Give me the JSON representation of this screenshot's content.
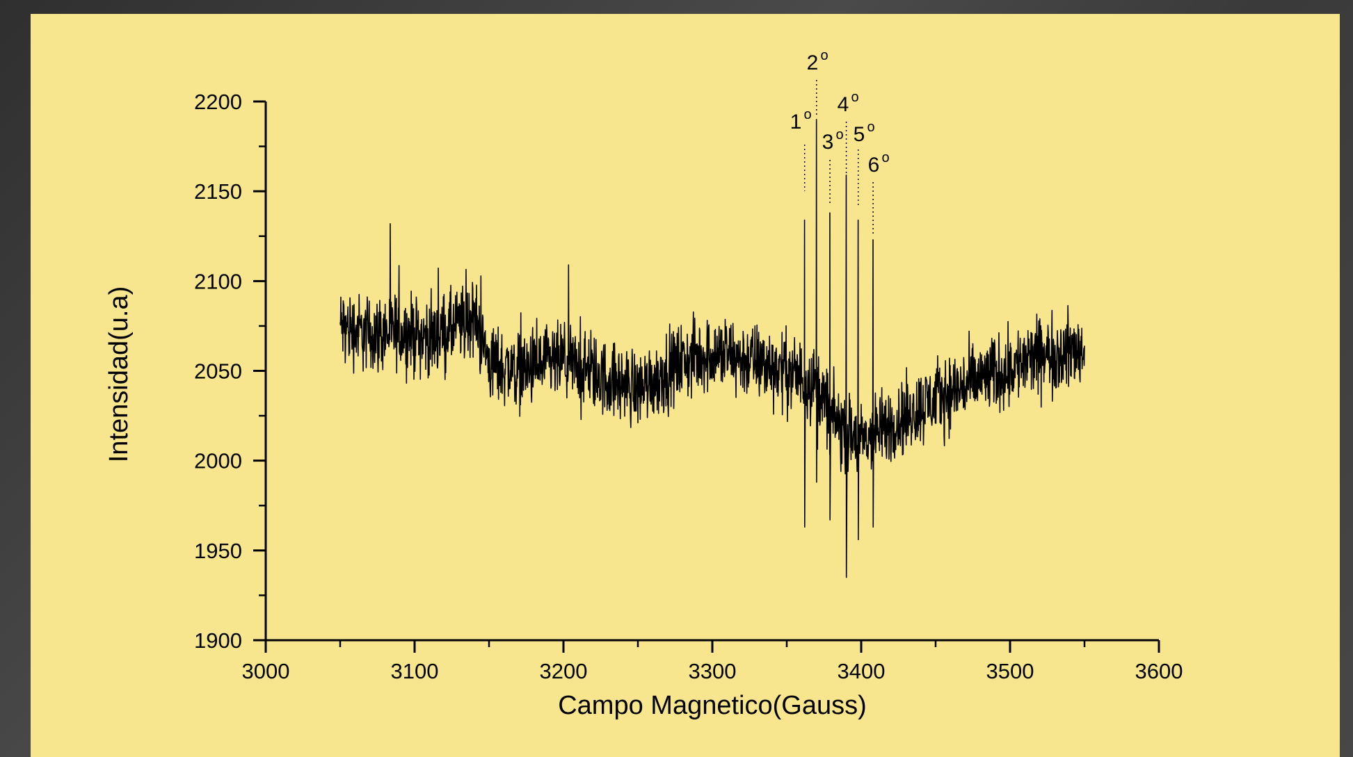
{
  "chart_data": {
    "type": "line",
    "title": "",
    "xlabel": "Campo Magnetico(Gauss)",
    "ylabel": "Intensidad(u.a)",
    "xlim": [
      3000,
      3600
    ],
    "ylim": [
      1900,
      2200
    ],
    "xticks": [
      3000,
      3100,
      3200,
      3300,
      3400,
      3500,
      3600
    ],
    "yticks": [
      1900,
      1950,
      2000,
      2050,
      2100,
      2150,
      2200
    ],
    "xtick_labels": [
      "3000",
      "3100",
      "3200",
      "3300",
      "3400",
      "3500",
      "3600"
    ],
    "ytick_labels": [
      "1900",
      "1950",
      "2000",
      "2050",
      "2100",
      "2150",
      "2200"
    ],
    "grid": false,
    "legend": "none",
    "line_color": "#000000",
    "background_color": "#f8e68e",
    "series": [
      {
        "baseline": {
          "x": [
            3050,
            3070,
            3090,
            3110,
            3130,
            3140,
            3150,
            3170,
            3200,
            3230,
            3250,
            3280,
            3300,
            3330,
            3350,
            3370,
            3380,
            3390,
            3400,
            3420,
            3450,
            3480,
            3500,
            3520,
            3550
          ],
          "y": [
            2075,
            2070,
            2072,
            2068,
            2075,
            2080,
            2055,
            2050,
            2055,
            2045,
            2040,
            2055,
            2060,
            2055,
            2050,
            2042,
            2025,
            2015,
            2010,
            2020,
            2035,
            2045,
            2052,
            2058,
            2062
          ]
        },
        "noise_amplitude": 22,
        "peaks": [
          {
            "x": 3362,
            "max": 2134,
            "min": 1963
          },
          {
            "x": 3370,
            "max": 2190,
            "min": 1988
          },
          {
            "x": 3379,
            "max": 2138,
            "min": 1967
          },
          {
            "x": 3390,
            "max": 2159,
            "min": 1935
          },
          {
            "x": 3398,
            "max": 2134,
            "min": 1956
          },
          {
            "x": 3408,
            "max": 2123,
            "min": 1963
          }
        ]
      }
    ],
    "annotations": [
      {
        "num": "1",
        "sup": "o",
        "x": 3362
      },
      {
        "num": "2",
        "sup": "o",
        "x": 3370
      },
      {
        "num": "3",
        "sup": "o",
        "x": 3379
      },
      {
        "num": "4",
        "sup": "o",
        "x": 3390
      },
      {
        "num": "5",
        "sup": "o",
        "x": 3398
      },
      {
        "num": "6",
        "sup": "o",
        "x": 3408
      }
    ]
  }
}
